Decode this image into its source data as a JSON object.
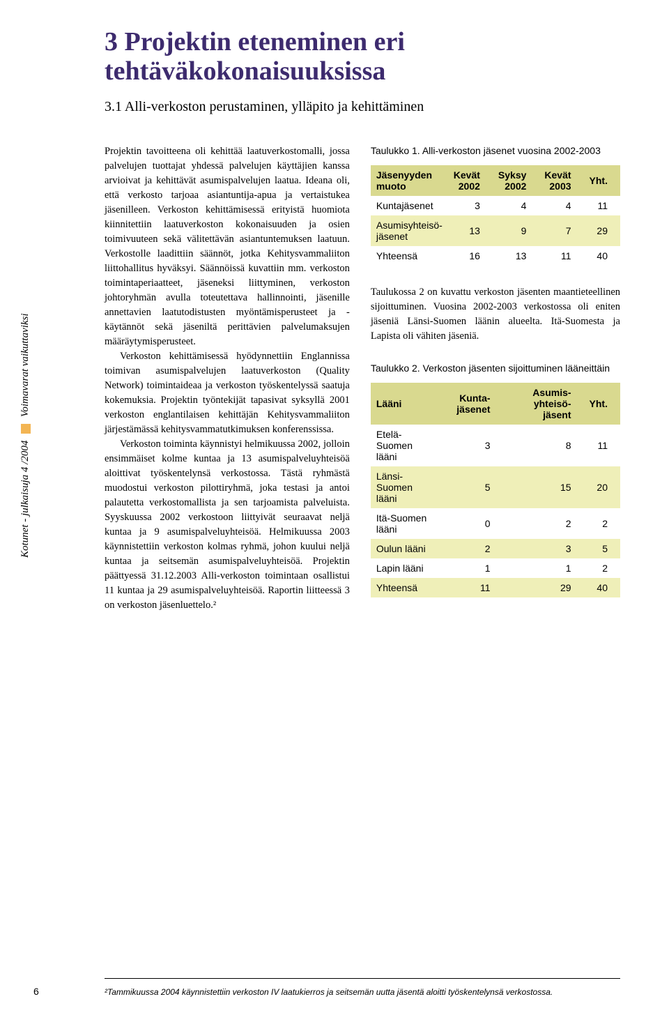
{
  "chapter_title": "3  Projektin eteneminen eri tehtäväkokonaisuuksissa",
  "section_title": "3.1  Alli-verkoston perustaminen, ylläpito ja kehittäminen",
  "sidebar": {
    "left": "Kotunet - julkaisuja 4 /2004",
    "right": "Voimavarat vaikuttaviksi"
  },
  "body_paragraphs": [
    "Projektin tavoitteena oli kehittää laatuverkostomalli, jossa palvelujen tuottajat yhdessä palvelujen käyttäjien kanssa arvioivat ja kehittävät asumispalvelujen laatua. Ideana oli, että verkosto tarjoaa asiantuntija-apua ja vertaistukea jäsenilleen. Verkoston kehittämisessä erityistä huomiota kiinnitettiin laatuverkoston kokonaisuuden ja osien toimivuuteen sekä välitettävän asiantuntemuksen laatuun. Verkostolle laadittiin säännöt, jotka Kehitysvammaliiton liittohallitus hyväksyi. Säännöissä kuvattiin mm. verkoston toimintaperiaatteet, jäseneksi liittyminen, verkoston johtoryhmän avulla toteutettava hallinnointi, jäsenille annettavien laatutodistusten myöntämisperusteet ja -käytännöt sekä jäseniltä perittävien palvelumaksujen määräytymisperusteet.",
    "Verkoston kehittämisessä hyödynnettiin Englannissa toimivan asumispalvelujen laatuverkoston (Quality Network) toimintaideaa ja verkoston työskentelyssä saatuja kokemuksia. Projektin työntekijät tapasivat syksyllä 2001 verkoston englantilaisen kehittäjän Kehitysvammaliiton järjestämässä kehitysvammatutkimuksen konferenssissa.",
    "Verkoston toiminta käynnistyi helmikuussa 2002, jolloin ensimmäiset kolme kuntaa ja 13 asumispalveluyhteisöä aloittivat työskentelynsä verkostossa. Tästä ryhmästä muodostui verkoston pilottiryhmä, joka testasi ja antoi palautetta verkostomallista ja sen tarjoamista palveluista. Syyskuussa 2002 verkostoon liittyivät seuraavat neljä kuntaa ja 9 asumispalveluyhteisöä. Helmikuussa 2003 käynnistettiin verkoston kolmas ryhmä, johon kuului neljä kuntaa ja seitsemän asumispalveluyhteisöä. Projektin päättyessä 31.12.2003 Alli-verkoston toimintaan osallistui 11 kuntaa ja 29 asumispalveluyhteisöä. Raportin liitteessä 3 on verkoston jäsenluettelo.²"
  ],
  "table1": {
    "caption_label": "Taulukko 1.",
    "caption_text": "Alli-verkoston jäsenet vuosina 2002-2003",
    "headers": [
      "Jäsenyyden muoto",
      "Kevät 2002",
      "Syksy 2002",
      "Kevät 2003",
      "Yht."
    ],
    "rows": [
      [
        "Kuntajäsenet",
        "3",
        "4",
        "4",
        "11"
      ],
      [
        "Asumisyhteisö-jäsenet",
        "13",
        "9",
        "7",
        "29"
      ],
      [
        "Yhteensä",
        "16",
        "13",
        "11",
        "40"
      ]
    ]
  },
  "mid_paragraph": "Taulukossa 2 on kuvattu verkoston jäsenten maantieteellinen sijoittuminen. Vuosina 2002-2003 verkostossa oli eniten jäseniä Länsi-Suomen läänin alueelta. Itä-Suomesta ja Lapista oli vähiten jäseniä.",
  "table2": {
    "caption_label": "Taulukko 2.",
    "caption_text": "Verkoston jäsenten sijoittuminen lääneittäin",
    "headers": [
      "Lääni",
      "Kunta-jäsenet",
      "Asumis-yhteisö-jäsent",
      "Yht."
    ],
    "rows": [
      [
        "Etelä-Suomen lääni",
        "3",
        "8",
        "11"
      ],
      [
        "Länsi-Suomen lääni",
        "5",
        "15",
        "20"
      ],
      [
        "Itä-Suomen lääni",
        "0",
        "2",
        "2"
      ],
      [
        "Oulun lääni",
        "2",
        "3",
        "5"
      ],
      [
        "Lapin lääni",
        "1",
        "1",
        "2"
      ],
      [
        "Yhteensä",
        "11",
        "29",
        "40"
      ]
    ]
  },
  "footnote": "²Tammikuussa 2004 käynnistettiin verkoston IV laatukierros ja seitsemän uutta jäsentä aloitti työskentelynsä verkostossa.",
  "page_number": "6",
  "colors": {
    "title": "#3d2b6e",
    "header_bg": "#d9d98f",
    "row_alt": "#efefb8",
    "marker": "#f3b553"
  }
}
